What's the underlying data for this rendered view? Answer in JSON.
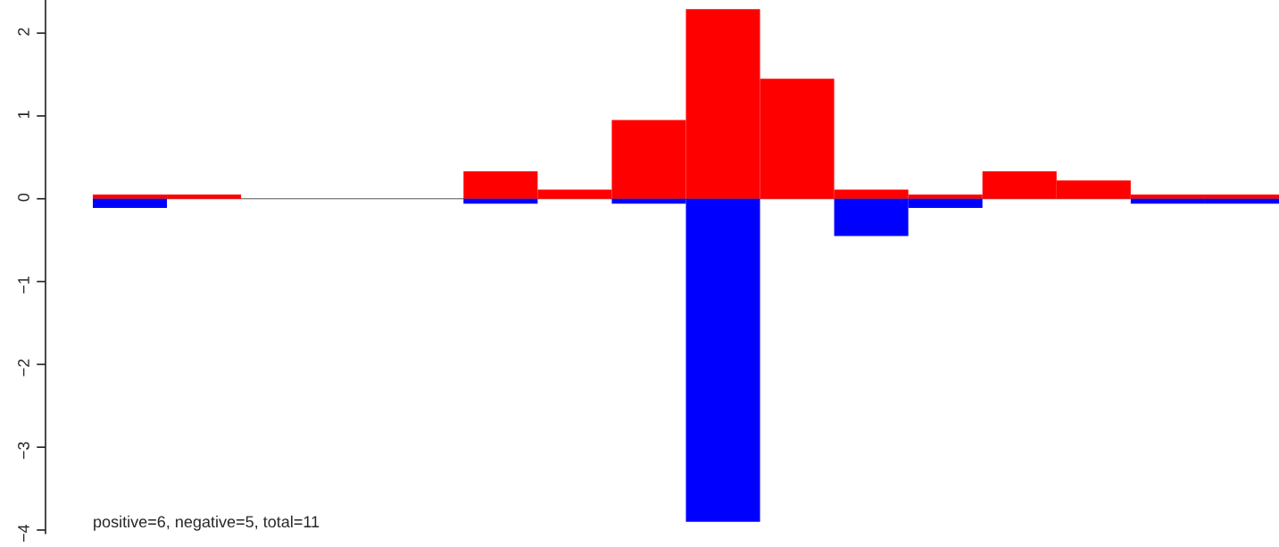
{
  "chart_data": {
    "type": "bar",
    "stacked": true,
    "categories": [
      null,
      null,
      null,
      null,
      null,
      null,
      null,
      null,
      null,
      null,
      null,
      null,
      null,
      null,
      null,
      null
    ],
    "series": [
      {
        "color": "#ff0000",
        "values": [
          0.05,
          0.05,
          0,
          0,
          0,
          0.33,
          0.11,
          0.95,
          2.29,
          1.45,
          0.11,
          0.05,
          0.33,
          0.22,
          0.05,
          0.05
        ]
      },
      {
        "color": "#0000ff",
        "values": [
          -0.11,
          0,
          0,
          0,
          0,
          -0.06,
          0,
          -0.06,
          -3.9,
          0,
          -0.45,
          -0.11,
          0,
          0,
          -0.06,
          -0.06
        ]
      }
    ],
    "ylim": [
      -4.04,
      2.4
    ],
    "yticks": [
      -4,
      -3,
      -2,
      -1,
      0,
      1,
      2
    ],
    "ref_lines": [
      {
        "axis": "y",
        "value": 0,
        "color": "#555555"
      }
    ],
    "tick_labels": "y",
    "annotations": [
      {
        "text": "positive=6, negative=5, total=11"
      }
    ]
  }
}
